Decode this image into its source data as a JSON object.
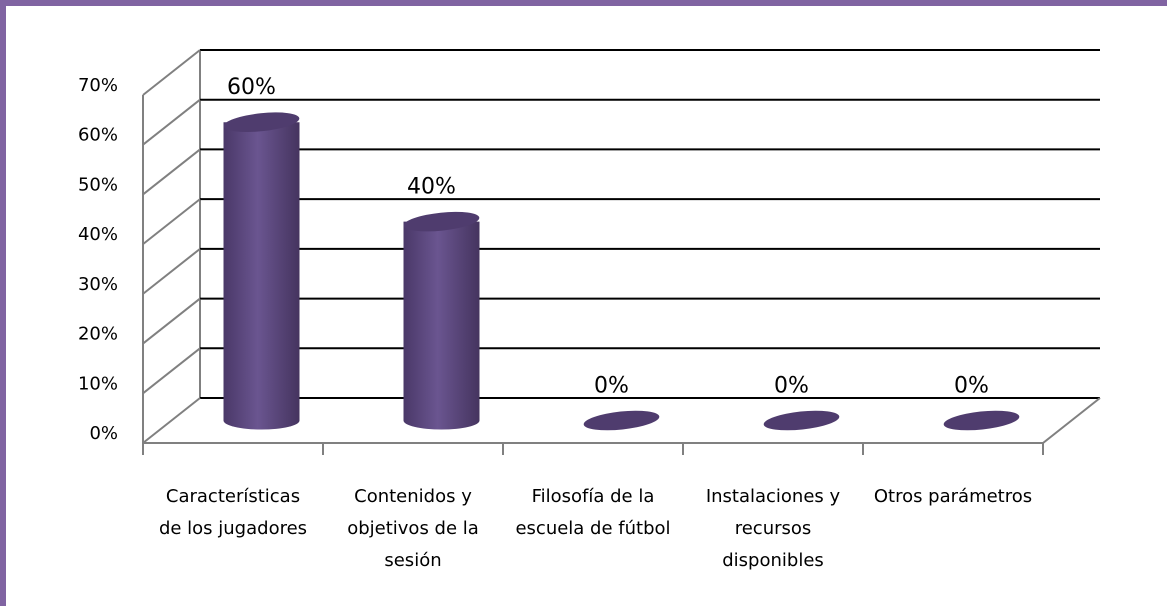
{
  "chart_data": {
    "type": "bar3d",
    "categories": [
      "Características de los jugadores",
      "Contenidos y objetivos de la sesión",
      "Filosofía de la escuela de fútbol",
      "Instalaciones y recursos disponibles",
      "Otros parámetros"
    ],
    "values": [
      60,
      40,
      0,
      0,
      0
    ],
    "value_labels": [
      "60%",
      "40%",
      "0%",
      "0%",
      "0%"
    ],
    "color": "#5e4a80",
    "ylim": [
      0,
      70
    ],
    "yticks": [
      {
        "value": 0,
        "label": "0%"
      },
      {
        "value": 10,
        "label": "10%"
      },
      {
        "value": 20,
        "label": "20%"
      },
      {
        "value": 30,
        "label": "30%"
      },
      {
        "value": 40,
        "label": "40%"
      },
      {
        "value": 50,
        "label": "50%"
      },
      {
        "value": 60,
        "label": "60%"
      },
      {
        "value": 70,
        "label": "70%"
      }
    ],
    "grid": true
  }
}
